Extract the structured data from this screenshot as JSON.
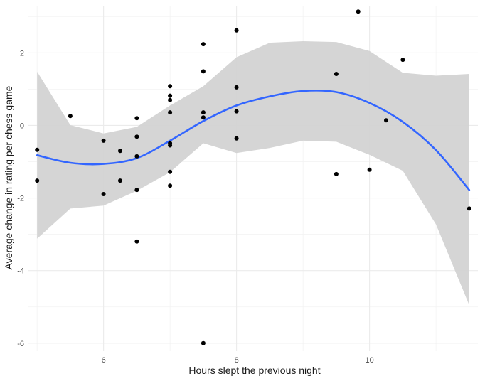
{
  "chart_data": {
    "type": "scatter",
    "title": "",
    "xlabel": "Hours slept the previous night",
    "ylabel": "Average change in rating per chess game",
    "xlim": [
      4.87,
      11.63
    ],
    "ylim": [
      -6.22,
      3.3
    ],
    "x_ticks": [
      6,
      8,
      10
    ],
    "y_ticks": [
      2,
      0,
      -2,
      -4,
      -6
    ],
    "x_tick_labels": [
      "6",
      "8",
      "10"
    ],
    "y_tick_labels": [
      "2",
      "0",
      "-2",
      "-4",
      "-6"
    ],
    "grid": true,
    "legend": "none",
    "points": [
      {
        "x": 5.0,
        "y": -0.67
      },
      {
        "x": 5.0,
        "y": -1.52
      },
      {
        "x": 5.5,
        "y": 0.26
      },
      {
        "x": 6.0,
        "y": -0.42
      },
      {
        "x": 6.0,
        "y": -1.89
      },
      {
        "x": 6.25,
        "y": -0.7
      },
      {
        "x": 6.25,
        "y": -1.52
      },
      {
        "x": 6.5,
        "y": 0.2
      },
      {
        "x": 6.5,
        "y": -0.31
      },
      {
        "x": 6.5,
        "y": -0.85
      },
      {
        "x": 6.5,
        "y": -1.78
      },
      {
        "x": 6.5,
        "y": -3.2
      },
      {
        "x": 7.0,
        "y": 1.08
      },
      {
        "x": 7.0,
        "y": 0.82
      },
      {
        "x": 7.0,
        "y": 0.7
      },
      {
        "x": 7.0,
        "y": 0.36
      },
      {
        "x": 7.0,
        "y": -0.49
      },
      {
        "x": 7.0,
        "y": -0.55
      },
      {
        "x": 7.0,
        "y": -1.28
      },
      {
        "x": 7.0,
        "y": -1.66
      },
      {
        "x": 7.5,
        "y": 2.24
      },
      {
        "x": 7.5,
        "y": 1.49
      },
      {
        "x": 7.5,
        "y": 0.36
      },
      {
        "x": 7.5,
        "y": 0.22
      },
      {
        "x": 7.5,
        "y": -6.0
      },
      {
        "x": 8.0,
        "y": 2.62
      },
      {
        "x": 8.0,
        "y": 1.05
      },
      {
        "x": 8.0,
        "y": 0.39
      },
      {
        "x": 8.0,
        "y": -0.36
      },
      {
        "x": 9.5,
        "y": 1.42
      },
      {
        "x": 9.5,
        "y": -1.34
      },
      {
        "x": 9.83,
        "y": 3.14
      },
      {
        "x": 10.0,
        "y": -1.22
      },
      {
        "x": 10.25,
        "y": 0.14
      },
      {
        "x": 10.5,
        "y": 1.81
      },
      {
        "x": 11.5,
        "y": -2.29
      }
    ],
    "smooth_line": {
      "color": "#3366ff",
      "x": [
        5.0,
        5.5,
        6.0,
        6.5,
        7.0,
        7.5,
        8.0,
        8.5,
        9.0,
        9.5,
        10.0,
        10.5,
        11.0,
        11.5
      ],
      "y": [
        -0.82,
        -1.03,
        -1.06,
        -0.9,
        -0.42,
        0.12,
        0.55,
        0.8,
        0.95,
        0.92,
        0.62,
        0.1,
        -0.68,
        -1.78
      ]
    },
    "confidence_band": {
      "color": "#d3d3d3",
      "x": [
        5.0,
        5.5,
        6.0,
        6.5,
        7.0,
        7.5,
        8.0,
        8.5,
        9.0,
        9.5,
        10.0,
        10.5,
        11.0,
        11.5
      ],
      "upper": [
        1.48,
        0.01,
        -0.22,
        -0.04,
        0.55,
        1.08,
        1.88,
        2.28,
        2.32,
        2.3,
        2.05,
        1.45,
        1.37,
        1.42
      ],
      "lower": [
        -3.12,
        -2.29,
        -2.21,
        -1.8,
        -1.29,
        -0.49,
        -0.76,
        -0.62,
        -0.42,
        -0.45,
        -0.81,
        -1.25,
        -2.73,
        -4.95
      ]
    }
  }
}
